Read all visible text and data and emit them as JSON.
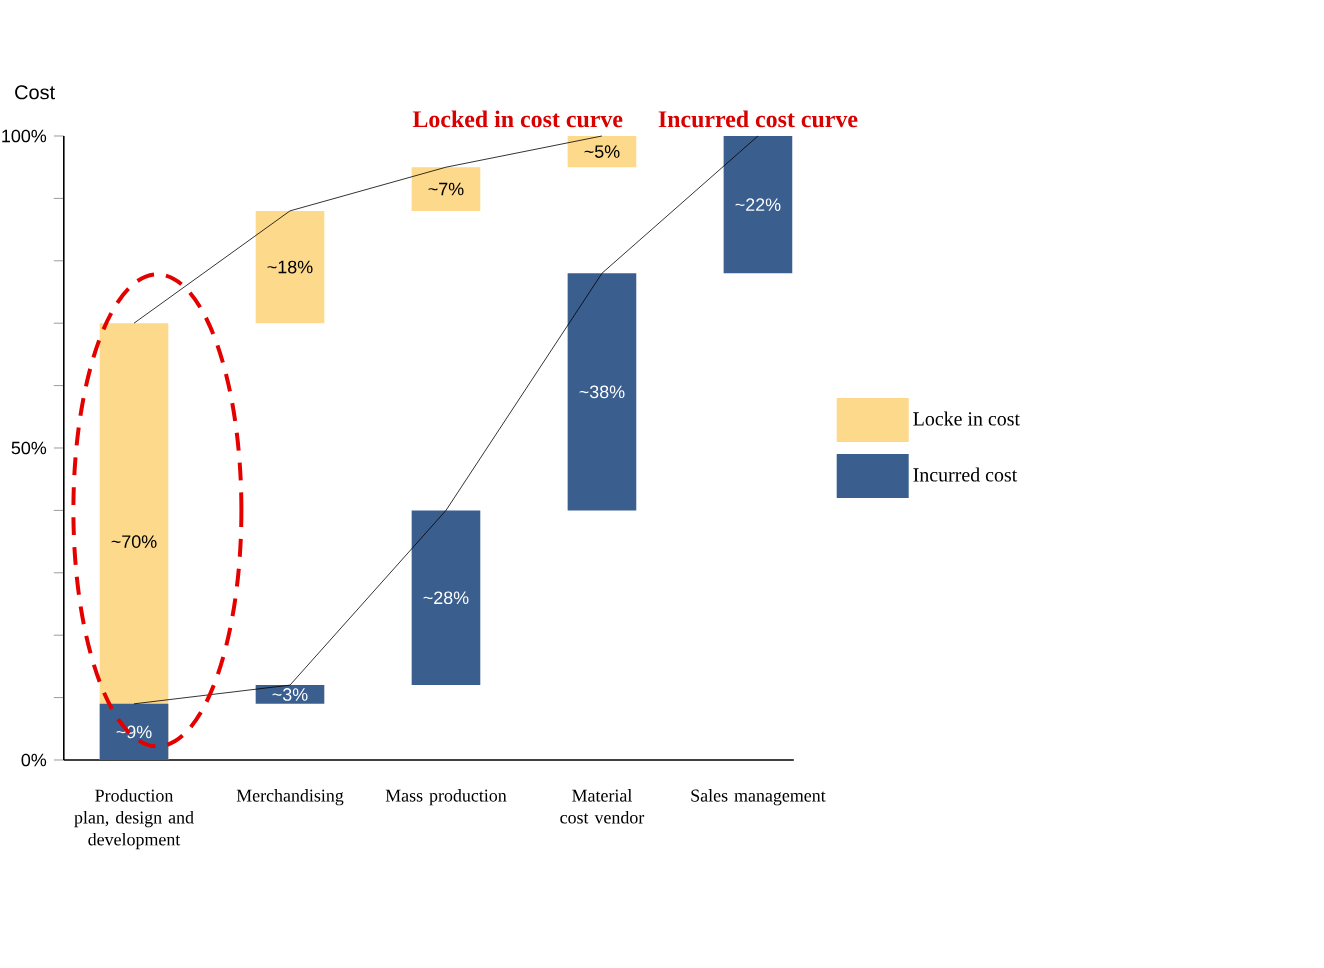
{
  "chart_data": {
    "type": "bar",
    "ylabel": "Cost",
    "categories": [
      "Production plan, design and development",
      "Merchandising",
      "Mass production",
      "Material cost vendor",
      "Sales management"
    ],
    "series": [
      {
        "name": "Locke in cost",
        "color": "#fdd98b",
        "values": [
          70,
          18,
          7,
          5,
          null
        ],
        "base": [
          0,
          70,
          88,
          95,
          null
        ],
        "value_labels": [
          "~70%",
          "~18%",
          "~7%",
          "~5%",
          null
        ]
      },
      {
        "name": "Incurred cost",
        "color": "#3a5f8f",
        "values": [
          9,
          3,
          28,
          38,
          22
        ],
        "base": [
          0,
          9,
          12,
          40,
          78
        ],
        "value_labels": [
          "~9%",
          "~3%",
          "~28%",
          "~38%",
          "~22%"
        ]
      },
      {
        "name": "Locked in cost curve",
        "type": "line",
        "color": "#000000",
        "values": [
          70,
          88,
          95,
          100,
          null
        ]
      },
      {
        "name": "Incurred cost curve",
        "type": "line",
        "color": "#000000",
        "values": [
          9,
          12,
          40,
          78,
          100
        ]
      }
    ],
    "ylim": [
      0,
      100
    ],
    "yticks": [
      {
        "value": 0,
        "label": "0%"
      },
      {
        "value": 10,
        "label": null
      },
      {
        "value": 20,
        "label": null
      },
      {
        "value": 30,
        "label": null
      },
      {
        "value": 40,
        "label": null
      },
      {
        "value": 50,
        "label": "50%"
      },
      {
        "value": 60,
        "label": null
      },
      {
        "value": 70,
        "label": null
      },
      {
        "value": 80,
        "label": null
      },
      {
        "value": 90,
        "label": null
      },
      {
        "value": 100,
        "label": "100%"
      }
    ],
    "legend": "right",
    "grid": false
  }
}
